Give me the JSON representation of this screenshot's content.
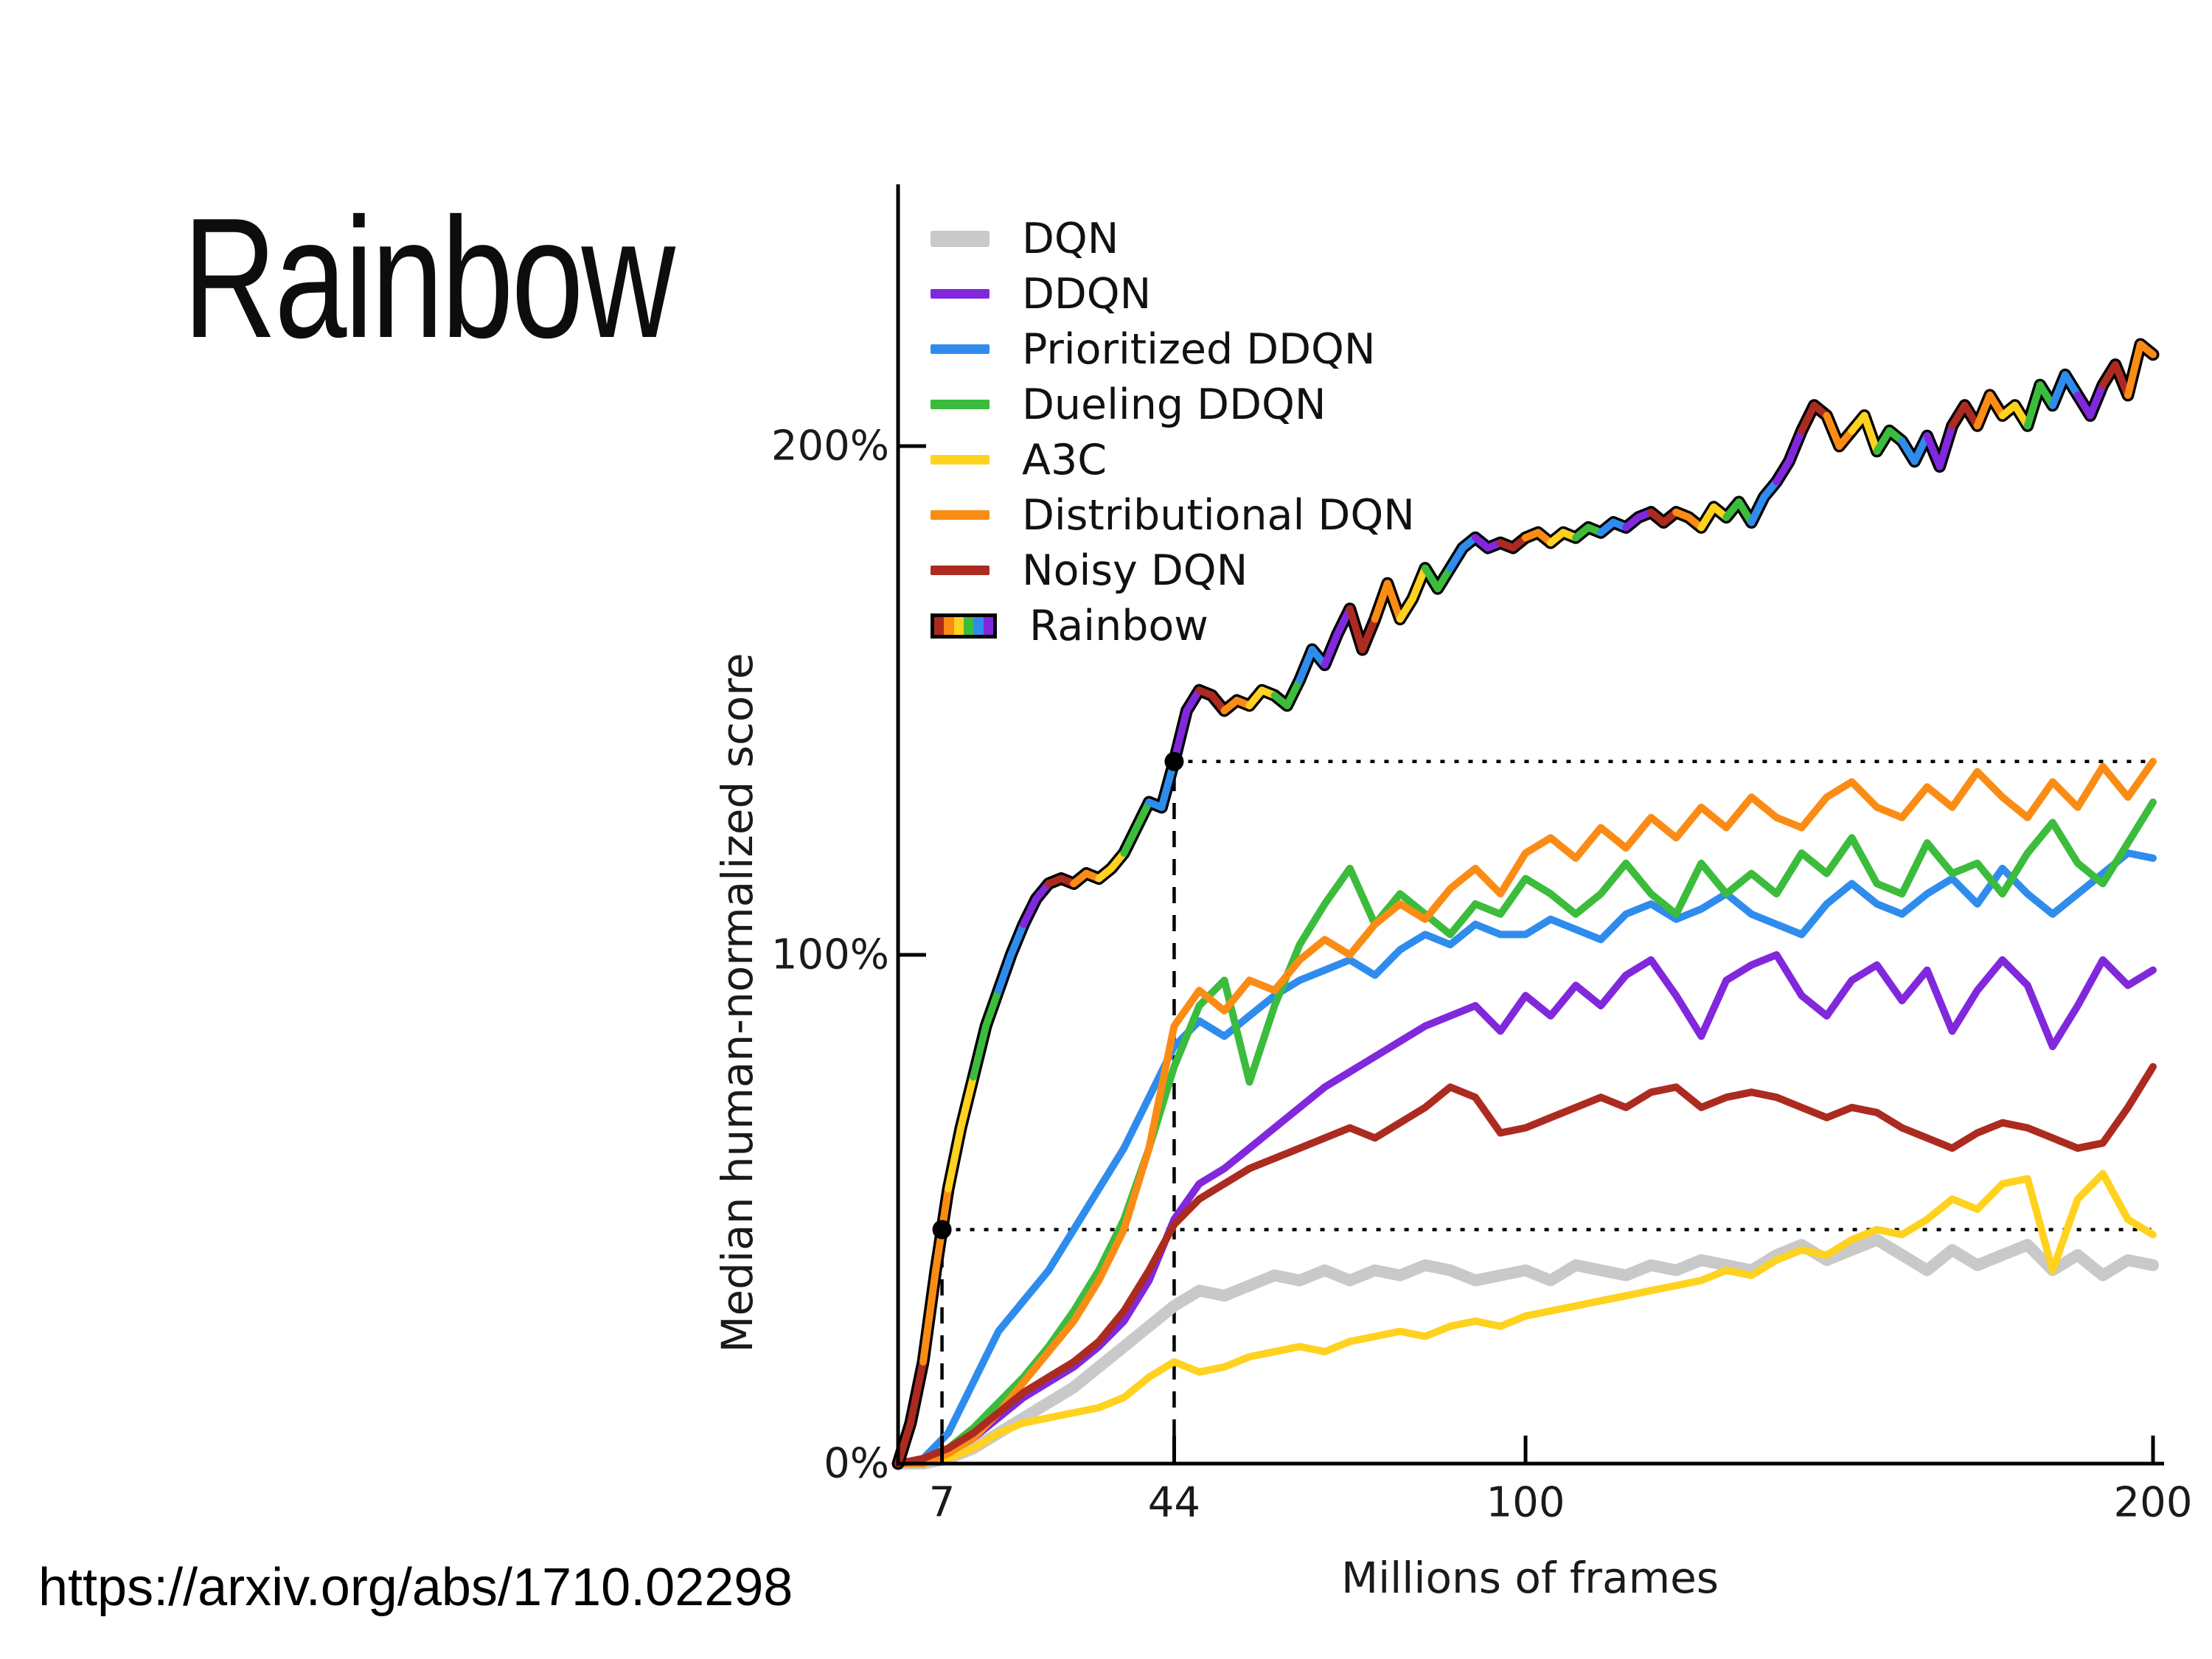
{
  "slide": {
    "title": "Rainbow",
    "source_url": "https://arxiv.org/abs/1710.02298"
  },
  "chart_data": {
    "type": "line",
    "title": "",
    "xlabel": "Millions of frames",
    "ylabel": "Median human-normalized score",
    "xlim": [
      0,
      200
    ],
    "ylim": [
      0,
      250
    ],
    "grid": false,
    "legend_position": "upper left inside",
    "x_ticks": [
      {
        "value": 7,
        "label": "7"
      },
      {
        "value": 44,
        "label": "44"
      },
      {
        "value": 100,
        "label": "100"
      },
      {
        "value": 200,
        "label": "200"
      }
    ],
    "y_ticks": [
      {
        "value": 0,
        "label": "0%"
      },
      {
        "value": 100,
        "label": "100%"
      },
      {
        "value": 200,
        "label": "200%"
      }
    ],
    "legend": [
      {
        "label": "DQN",
        "color": "#c9c9c9",
        "swatch": "thick"
      },
      {
        "label": "DDQN",
        "color": "#8128dd",
        "swatch": "line"
      },
      {
        "label": "Prioritized DDQN",
        "color": "#2f8ced",
        "swatch": "line"
      },
      {
        "label": "Dueling DDQN",
        "color": "#3cbc3c",
        "swatch": "line"
      },
      {
        "label": "A3C",
        "color": "#ffd21f",
        "swatch": "line"
      },
      {
        "label": "Distributional DQN",
        "color": "#fa8c16",
        "swatch": "line"
      },
      {
        "label": "Noisy DQN",
        "color": "#ac2b20",
        "swatch": "line"
      },
      {
        "label": "Rainbow",
        "color": "rainbow",
        "swatch": "rainbow",
        "colors": [
          "#ac2b20",
          "#fa8c16",
          "#ffd21f",
          "#3cbc3c",
          "#2f8ced",
          "#8128dd"
        ]
      }
    ],
    "series": [
      {
        "name": "DQN",
        "color": "#c9c9c9",
        "width": 16,
        "x_start": 0,
        "x_step": 4,
        "values": [
          0,
          0,
          1,
          3,
          6,
          9,
          12,
          15,
          19,
          23,
          27,
          31,
          34,
          33,
          35,
          37,
          36,
          38,
          36,
          38,
          37,
          39,
          38,
          36,
          37,
          38,
          36,
          39,
          38,
          37,
          39,
          38,
          40,
          39,
          38,
          41,
          43,
          40,
          42,
          44,
          41,
          38,
          42,
          39,
          41,
          43,
          38,
          41,
          37,
          40,
          39
        ]
      },
      {
        "name": "DDQN",
        "color": "#8128dd",
        "width": 10,
        "x_start": 0,
        "x_step": 4,
        "values": [
          0,
          0,
          2,
          5,
          9,
          13,
          16,
          19,
          23,
          28,
          36,
          48,
          55,
          58,
          62,
          66,
          70,
          74,
          77,
          80,
          83,
          86,
          88,
          90,
          85,
          92,
          88,
          94,
          90,
          96,
          99,
          92,
          84,
          95,
          98,
          100,
          92,
          88,
          95,
          98,
          91,
          97,
          85,
          93,
          99,
          94,
          82,
          90,
          99,
          94,
          97
        ]
      },
      {
        "name": "Prioritized DDQN",
        "color": "#2f8ced",
        "width": 10,
        "x_start": 0,
        "x_step": 4,
        "values": [
          0,
          1,
          6,
          16,
          26,
          32,
          38,
          46,
          54,
          62,
          72,
          82,
          87,
          84,
          88,
          92,
          95,
          97,
          99,
          96,
          101,
          104,
          102,
          106,
          104,
          104,
          107,
          105,
          103,
          108,
          110,
          107,
          109,
          112,
          108,
          106,
          104,
          110,
          114,
          110,
          108,
          112,
          115,
          110,
          117,
          112,
          108,
          112,
          116,
          120,
          119
        ]
      },
      {
        "name": "Dueling DDQN",
        "color": "#3cbc3c",
        "width": 10,
        "x_start": 0,
        "x_step": 4,
        "values": [
          0,
          0,
          3,
          7,
          12,
          17,
          23,
          30,
          38,
          48,
          62,
          78,
          90,
          95,
          75,
          90,
          102,
          110,
          117,
          106,
          112,
          108,
          104,
          110,
          108,
          115,
          112,
          108,
          112,
          118,
          112,
          108,
          118,
          112,
          116,
          112,
          120,
          116,
          123,
          114,
          112,
          122,
          116,
          118,
          112,
          120,
          126,
          118,
          114,
          122,
          130
        ]
      },
      {
        "name": "A3C",
        "color": "#ffd21f",
        "width": 10,
        "x_start": 0,
        "x_step": 4,
        "values": [
          0,
          0,
          1,
          3,
          6,
          8,
          9,
          10,
          11,
          13,
          17,
          20,
          18,
          19,
          21,
          22,
          23,
          22,
          24,
          25,
          26,
          25,
          27,
          28,
          27,
          29,
          30,
          31,
          32,
          33,
          34,
          35,
          36,
          38,
          37,
          40,
          42,
          41,
          44,
          46,
          45,
          48,
          52,
          50,
          55,
          56,
          38,
          52,
          57,
          48,
          45
        ]
      },
      {
        "name": "Distributional DQN",
        "color": "#fa8c16",
        "width": 10,
        "x_start": 0,
        "x_step": 4,
        "values": [
          0,
          0,
          2,
          5,
          10,
          16,
          22,
          28,
          36,
          46,
          62,
          86,
          93,
          89,
          95,
          93,
          99,
          103,
          100,
          106,
          110,
          107,
          113,
          117,
          112,
          120,
          123,
          119,
          125,
          121,
          127,
          123,
          129,
          125,
          131,
          127,
          125,
          131,
          134,
          129,
          127,
          133,
          129,
          136,
          131,
          127,
          134,
          129,
          137,
          131,
          138
        ]
      },
      {
        "name": "Noisy DQN",
        "color": "#ac2b20",
        "width": 10,
        "x_start": 0,
        "x_step": 4,
        "values": [
          0,
          1,
          3,
          6,
          10,
          14,
          17,
          20,
          24,
          30,
          38,
          47,
          52,
          55,
          58,
          60,
          62,
          64,
          66,
          64,
          67,
          70,
          74,
          72,
          65,
          66,
          68,
          70,
          72,
          70,
          73,
          74,
          70,
          72,
          73,
          72,
          70,
          68,
          70,
          69,
          66,
          64,
          62,
          65,
          67,
          66,
          64,
          62,
          63,
          70,
          78
        ]
      }
    ],
    "rainbow_series": {
      "name": "Rainbow",
      "outline_color": "#000000",
      "outline_width": 17,
      "color_cycle": [
        "#ac2b20",
        "#fa8c16",
        "#ffd21f",
        "#3cbc3c",
        "#2f8ced",
        "#8128dd"
      ],
      "segment_points": 2,
      "width": 10,
      "x_start": 0,
      "x_step": 2,
      "values": [
        0,
        8,
        20,
        38,
        54,
        66,
        76,
        86,
        93,
        100,
        106,
        111,
        114,
        115,
        114,
        116,
        115,
        117,
        120,
        125,
        130,
        129,
        138,
        148,
        152,
        151,
        148,
        150,
        149,
        152,
        151,
        149,
        154,
        160,
        157,
        163,
        168,
        160,
        166,
        173,
        166,
        170,
        176,
        172,
        176,
        180,
        182,
        180,
        181,
        180,
        182,
        183,
        181,
        183,
        182,
        184,
        183,
        185,
        184,
        186,
        187,
        185,
        187,
        186,
        184,
        188,
        186,
        189,
        185,
        190,
        193,
        197,
        203,
        208,
        206,
        200,
        203,
        206,
        199,
        203,
        201,
        197,
        202,
        196,
        204,
        208,
        204,
        210,
        206,
        208,
        204,
        212,
        208,
        214,
        210,
        206,
        212,
        216,
        210,
        220,
        218
      ]
    },
    "annotations": {
      "marker_dots": [
        {
          "x": 7,
          "y": 46
        },
        {
          "x": 44,
          "y": 138
        }
      ],
      "dashed_vlines": [
        {
          "x": 7,
          "y_from": 0,
          "y_to": 46
        },
        {
          "x": 44,
          "y_from": 0,
          "y_to": 138
        }
      ],
      "dotted_hlines": [
        {
          "y": 46,
          "x_from": 7,
          "x_to": 200
        },
        {
          "y": 138,
          "x_from": 44,
          "x_to": 200
        }
      ]
    }
  }
}
